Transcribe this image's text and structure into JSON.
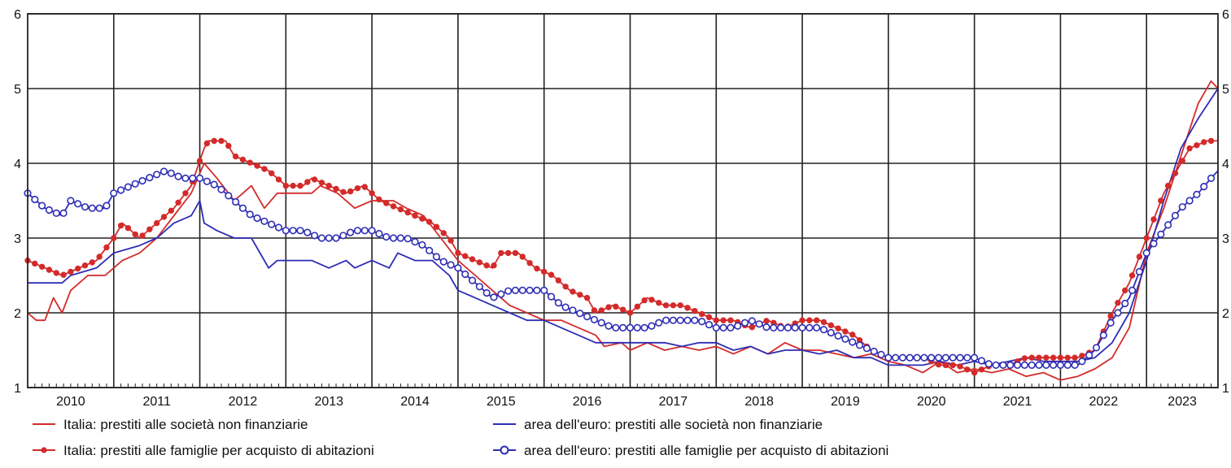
{
  "chart_data": {
    "type": "line",
    "title": "",
    "xlabel": "",
    "ylabel": "",
    "ylim": [
      1,
      6
    ],
    "xlim": [
      2009.5,
      2023.33
    ],
    "grid": true,
    "legend_position": "bottom",
    "x_tick_labels": [
      "2010",
      "2011",
      "2012",
      "2013",
      "2014",
      "2015",
      "2016",
      "2017",
      "2018",
      "2019",
      "2020",
      "2021",
      "2022",
      "2023"
    ],
    "y_tick_labels": [
      "1",
      "2",
      "3",
      "4",
      "5",
      "6"
    ],
    "series": [
      {
        "name": "Italia: prestiti alle società non finanziarie",
        "color": "#d42a2a",
        "marker": "none",
        "points": [
          [
            2009.5,
            2.0
          ],
          [
            2009.6,
            1.9
          ],
          [
            2009.7,
            1.9
          ],
          [
            2009.8,
            2.2
          ],
          [
            2009.9,
            2.0
          ],
          [
            2010.0,
            2.3
          ],
          [
            2010.2,
            2.5
          ],
          [
            2010.4,
            2.5
          ],
          [
            2010.6,
            2.7
          ],
          [
            2010.8,
            2.8
          ],
          [
            2011.0,
            3.0
          ],
          [
            2011.2,
            3.3
          ],
          [
            2011.4,
            3.6
          ],
          [
            2011.55,
            4.0
          ],
          [
            2011.7,
            3.8
          ],
          [
            2011.9,
            3.5
          ],
          [
            2012.0,
            3.6
          ],
          [
            2012.1,
            3.7
          ],
          [
            2012.25,
            3.4
          ],
          [
            2012.4,
            3.6
          ],
          [
            2012.6,
            3.6
          ],
          [
            2012.8,
            3.6
          ],
          [
            2012.9,
            3.7
          ],
          [
            2013.1,
            3.6
          ],
          [
            2013.3,
            3.4
          ],
          [
            2013.5,
            3.5
          ],
          [
            2013.75,
            3.5
          ],
          [
            2013.9,
            3.4
          ],
          [
            2014.1,
            3.3
          ],
          [
            2014.3,
            3.0
          ],
          [
            2014.5,
            2.7
          ],
          [
            2014.7,
            2.5
          ],
          [
            2014.9,
            2.3
          ],
          [
            2015.1,
            2.1
          ],
          [
            2015.3,
            2.0
          ],
          [
            2015.5,
            1.9
          ],
          [
            2015.7,
            1.9
          ],
          [
            2015.9,
            1.8
          ],
          [
            2016.1,
            1.7
          ],
          [
            2016.2,
            1.55
          ],
          [
            2016.4,
            1.6
          ],
          [
            2016.5,
            1.5
          ],
          [
            2016.7,
            1.6
          ],
          [
            2016.9,
            1.5
          ],
          [
            2017.1,
            1.55
          ],
          [
            2017.3,
            1.5
          ],
          [
            2017.5,
            1.55
          ],
          [
            2017.7,
            1.45
          ],
          [
            2017.9,
            1.55
          ],
          [
            2018.1,
            1.45
          ],
          [
            2018.3,
            1.6
          ],
          [
            2018.5,
            1.5
          ],
          [
            2018.7,
            1.5
          ],
          [
            2018.9,
            1.45
          ],
          [
            2019.1,
            1.4
          ],
          [
            2019.3,
            1.45
          ],
          [
            2019.5,
            1.35
          ],
          [
            2019.7,
            1.3
          ],
          [
            2019.9,
            1.2
          ],
          [
            2020.1,
            1.35
          ],
          [
            2020.3,
            1.2
          ],
          [
            2020.5,
            1.25
          ],
          [
            2020.7,
            1.2
          ],
          [
            2020.9,
            1.25
          ],
          [
            2021.1,
            1.15
          ],
          [
            2021.3,
            1.2
          ],
          [
            2021.5,
            1.1
          ],
          [
            2021.7,
            1.15
          ],
          [
            2021.9,
            1.25
          ],
          [
            2022.1,
            1.4
          ],
          [
            2022.3,
            1.8
          ],
          [
            2022.5,
            2.8
          ],
          [
            2022.7,
            3.4
          ],
          [
            2022.9,
            4.1
          ],
          [
            2023.1,
            4.8
          ],
          [
            2023.25,
            5.1
          ],
          [
            2023.33,
            5.0
          ]
        ]
      },
      {
        "name": "area dell'euro: prestiti alle società non finanziarie",
        "color": "#2d2db5",
        "marker": "none",
        "points": [
          [
            2009.5,
            2.4
          ],
          [
            2009.9,
            2.4
          ],
          [
            2010.0,
            2.5
          ],
          [
            2010.3,
            2.6
          ],
          [
            2010.5,
            2.8
          ],
          [
            2010.8,
            2.9
          ],
          [
            2011.0,
            3.0
          ],
          [
            2011.2,
            3.2
          ],
          [
            2011.4,
            3.3
          ],
          [
            2011.5,
            3.5
          ],
          [
            2011.55,
            3.2
          ],
          [
            2011.7,
            3.1
          ],
          [
            2011.9,
            3.0
          ],
          [
            2012.1,
            3.0
          ],
          [
            2012.3,
            2.6
          ],
          [
            2012.4,
            2.7
          ],
          [
            2012.6,
            2.7
          ],
          [
            2012.8,
            2.7
          ],
          [
            2013.0,
            2.6
          ],
          [
            2013.2,
            2.7
          ],
          [
            2013.3,
            2.6
          ],
          [
            2013.5,
            2.7
          ],
          [
            2013.7,
            2.6
          ],
          [
            2013.8,
            2.8
          ],
          [
            2014.0,
            2.7
          ],
          [
            2014.2,
            2.7
          ],
          [
            2014.4,
            2.5
          ],
          [
            2014.5,
            2.3
          ],
          [
            2014.7,
            2.2
          ],
          [
            2014.9,
            2.1
          ],
          [
            2015.1,
            2.0
          ],
          [
            2015.3,
            1.9
          ],
          [
            2015.5,
            1.9
          ],
          [
            2015.7,
            1.8
          ],
          [
            2015.9,
            1.7
          ],
          [
            2016.1,
            1.6
          ],
          [
            2016.3,
            1.6
          ],
          [
            2016.5,
            1.6
          ],
          [
            2016.7,
            1.6
          ],
          [
            2016.9,
            1.6
          ],
          [
            2017.1,
            1.55
          ],
          [
            2017.3,
            1.6
          ],
          [
            2017.5,
            1.6
          ],
          [
            2017.7,
            1.5
          ],
          [
            2017.9,
            1.55
          ],
          [
            2018.1,
            1.45
          ],
          [
            2018.3,
            1.5
          ],
          [
            2018.5,
            1.5
          ],
          [
            2018.7,
            1.45
          ],
          [
            2018.9,
            1.5
          ],
          [
            2019.1,
            1.4
          ],
          [
            2019.3,
            1.4
          ],
          [
            2019.5,
            1.3
          ],
          [
            2019.7,
            1.3
          ],
          [
            2019.9,
            1.3
          ],
          [
            2020.1,
            1.35
          ],
          [
            2020.3,
            1.3
          ],
          [
            2020.5,
            1.35
          ],
          [
            2020.7,
            1.3
          ],
          [
            2020.9,
            1.35
          ],
          [
            2021.1,
            1.4
          ],
          [
            2021.3,
            1.35
          ],
          [
            2021.5,
            1.35
          ],
          [
            2021.7,
            1.35
          ],
          [
            2021.9,
            1.4
          ],
          [
            2022.1,
            1.6
          ],
          [
            2022.3,
            2.0
          ],
          [
            2022.5,
            2.7
          ],
          [
            2022.7,
            3.5
          ],
          [
            2022.9,
            4.2
          ],
          [
            2023.1,
            4.6
          ],
          [
            2023.33,
            5.0
          ]
        ]
      },
      {
        "name": "Italia: prestiti alle famiglie per acquisto di abitazioni",
        "color": "#d42a2a",
        "marker": "dot",
        "points": [
          [
            2009.5,
            2.7
          ],
          [
            2009.7,
            2.6
          ],
          [
            2009.9,
            2.5
          ],
          [
            2010.1,
            2.6
          ],
          [
            2010.3,
            2.7
          ],
          [
            2010.5,
            3.0
          ],
          [
            2010.6,
            3.2
          ],
          [
            2010.8,
            3.0
          ],
          [
            2011.0,
            3.2
          ],
          [
            2011.2,
            3.4
          ],
          [
            2011.4,
            3.7
          ],
          [
            2011.55,
            4.2
          ],
          [
            2011.6,
            4.3
          ],
          [
            2011.8,
            4.3
          ],
          [
            2011.9,
            4.1
          ],
          [
            2012.1,
            4.0
          ],
          [
            2012.3,
            3.9
          ],
          [
            2012.5,
            3.7
          ],
          [
            2012.7,
            3.7
          ],
          [
            2012.8,
            3.8
          ],
          [
            2013.0,
            3.7
          ],
          [
            2013.2,
            3.6
          ],
          [
            2013.4,
            3.7
          ],
          [
            2013.6,
            3.5
          ],
          [
            2013.8,
            3.4
          ],
          [
            2014.0,
            3.3
          ],
          [
            2014.2,
            3.2
          ],
          [
            2014.4,
            3.0
          ],
          [
            2014.5,
            2.8
          ],
          [
            2014.7,
            2.7
          ],
          [
            2014.9,
            2.6
          ],
          [
            2015.0,
            2.8
          ],
          [
            2015.2,
            2.8
          ],
          [
            2015.4,
            2.6
          ],
          [
            2015.6,
            2.5
          ],
          [
            2015.8,
            2.3
          ],
          [
            2016.0,
            2.2
          ],
          [
            2016.1,
            2.0
          ],
          [
            2016.3,
            2.1
          ],
          [
            2016.5,
            2.0
          ],
          [
            2016.7,
            2.2
          ],
          [
            2016.9,
            2.1
          ],
          [
            2017.1,
            2.1
          ],
          [
            2017.3,
            2.0
          ],
          [
            2017.5,
            1.9
          ],
          [
            2017.7,
            1.9
          ],
          [
            2017.9,
            1.8
          ],
          [
            2018.1,
            1.9
          ],
          [
            2018.3,
            1.8
          ],
          [
            2018.5,
            1.9
          ],
          [
            2018.7,
            1.9
          ],
          [
            2018.9,
            1.8
          ],
          [
            2019.1,
            1.7
          ],
          [
            2019.3,
            1.5
          ],
          [
            2019.5,
            1.4
          ],
          [
            2019.7,
            1.4
          ],
          [
            2019.9,
            1.4
          ],
          [
            2020.1,
            1.3
          ],
          [
            2020.3,
            1.3
          ],
          [
            2020.5,
            1.2
          ],
          [
            2020.7,
            1.3
          ],
          [
            2020.9,
            1.3
          ],
          [
            2021.1,
            1.4
          ],
          [
            2021.3,
            1.4
          ],
          [
            2021.5,
            1.4
          ],
          [
            2021.7,
            1.4
          ],
          [
            2021.9,
            1.5
          ],
          [
            2022.1,
            2.0
          ],
          [
            2022.3,
            2.4
          ],
          [
            2022.5,
            3.0
          ],
          [
            2022.7,
            3.6
          ],
          [
            2022.9,
            4.0
          ],
          [
            2023.0,
            4.2
          ],
          [
            2023.2,
            4.3
          ],
          [
            2023.33,
            4.3
          ]
        ]
      },
      {
        "name": "area dell'euro: prestiti alle famiglie per acquisto di abitazioni",
        "color": "#2d2db5",
        "marker": "circle",
        "points": [
          [
            2009.5,
            3.6
          ],
          [
            2009.7,
            3.4
          ],
          [
            2009.9,
            3.3
          ],
          [
            2010.0,
            3.5
          ],
          [
            2010.2,
            3.4
          ],
          [
            2010.4,
            3.4
          ],
          [
            2010.5,
            3.6
          ],
          [
            2010.7,
            3.7
          ],
          [
            2010.9,
            3.8
          ],
          [
            2011.1,
            3.9
          ],
          [
            2011.3,
            3.8
          ],
          [
            2011.5,
            3.8
          ],
          [
            2011.7,
            3.7
          ],
          [
            2011.9,
            3.5
          ],
          [
            2012.1,
            3.3
          ],
          [
            2012.3,
            3.2
          ],
          [
            2012.5,
            3.1
          ],
          [
            2012.7,
            3.1
          ],
          [
            2012.9,
            3.0
          ],
          [
            2013.1,
            3.0
          ],
          [
            2013.3,
            3.1
          ],
          [
            2013.5,
            3.1
          ],
          [
            2013.7,
            3.0
          ],
          [
            2013.9,
            3.0
          ],
          [
            2014.1,
            2.9
          ],
          [
            2014.3,
            2.7
          ],
          [
            2014.5,
            2.6
          ],
          [
            2014.7,
            2.4
          ],
          [
            2014.9,
            2.2
          ],
          [
            2015.1,
            2.3
          ],
          [
            2015.3,
            2.3
          ],
          [
            2015.5,
            2.3
          ],
          [
            2015.7,
            2.1
          ],
          [
            2015.9,
            2.0
          ],
          [
            2016.1,
            1.9
          ],
          [
            2016.3,
            1.8
          ],
          [
            2016.5,
            1.8
          ],
          [
            2016.7,
            1.8
          ],
          [
            2016.9,
            1.9
          ],
          [
            2017.1,
            1.9
          ],
          [
            2017.3,
            1.9
          ],
          [
            2017.5,
            1.8
          ],
          [
            2017.7,
            1.8
          ],
          [
            2017.9,
            1.9
          ],
          [
            2018.1,
            1.8
          ],
          [
            2018.3,
            1.8
          ],
          [
            2018.5,
            1.8
          ],
          [
            2018.7,
            1.8
          ],
          [
            2018.9,
            1.7
          ],
          [
            2019.1,
            1.6
          ],
          [
            2019.3,
            1.5
          ],
          [
            2019.5,
            1.4
          ],
          [
            2019.7,
            1.4
          ],
          [
            2019.9,
            1.4
          ],
          [
            2020.1,
            1.4
          ],
          [
            2020.3,
            1.4
          ],
          [
            2020.5,
            1.4
          ],
          [
            2020.7,
            1.3
          ],
          [
            2020.9,
            1.3
          ],
          [
            2021.1,
            1.3
          ],
          [
            2021.3,
            1.3
          ],
          [
            2021.5,
            1.3
          ],
          [
            2021.7,
            1.3
          ],
          [
            2021.9,
            1.5
          ],
          [
            2022.1,
            1.9
          ],
          [
            2022.3,
            2.2
          ],
          [
            2022.5,
            2.8
          ],
          [
            2022.7,
            3.1
          ],
          [
            2022.9,
            3.4
          ],
          [
            2023.1,
            3.6
          ],
          [
            2023.25,
            3.8
          ],
          [
            2023.33,
            3.9
          ]
        ]
      }
    ]
  }
}
